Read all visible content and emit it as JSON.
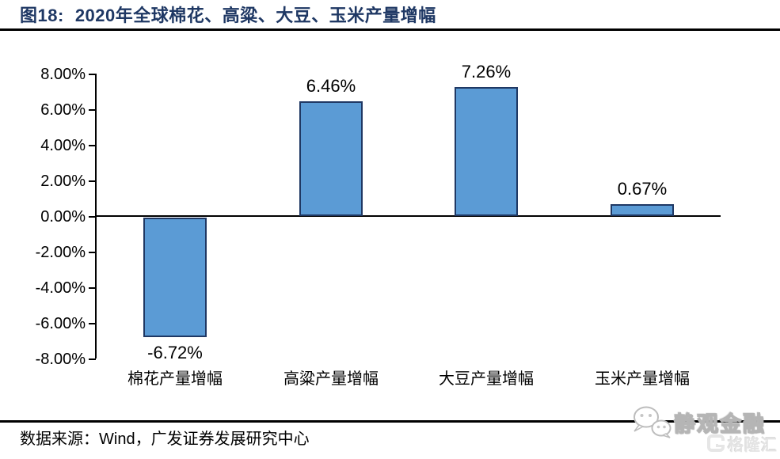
{
  "figure": {
    "tag": "图18:",
    "title": "2020年全球棉花、高粱、大豆、玉米产量增幅"
  },
  "chart_data": {
    "type": "bar",
    "title": "2020年全球棉花、高粱、大豆、玉米产量增幅",
    "categories": [
      "棉花产量增幅",
      "高粱产量增幅",
      "大豆产量增幅",
      "玉米产量增幅"
    ],
    "values": [
      -6.72,
      6.46,
      7.26,
      0.67
    ],
    "value_labels": [
      "-6.72%",
      "6.46%",
      "7.26%",
      "0.67%"
    ],
    "unit": "percent",
    "ylim": [
      -8,
      8
    ],
    "ytick_step": 2,
    "ytick_labels": [
      "8.00%",
      "6.00%",
      "4.00%",
      "2.00%",
      "0.00%",
      "-2.00%",
      "-4.00%",
      "-6.00%",
      "-8.00%"
    ],
    "grid": false,
    "legend_position": "none",
    "bar_color": "#5B9BD5",
    "bar_border_color": "#1F3864"
  },
  "footer": {
    "source": "数据来源：Wind，广发证券发展研究中心"
  },
  "watermark": {
    "brand": "静观金融",
    "logo_text": "格隆汇"
  },
  "colors": {
    "title_navy": "#1F3864",
    "axis_black": "#000000",
    "watermark_gray": "#E4E4E4"
  }
}
